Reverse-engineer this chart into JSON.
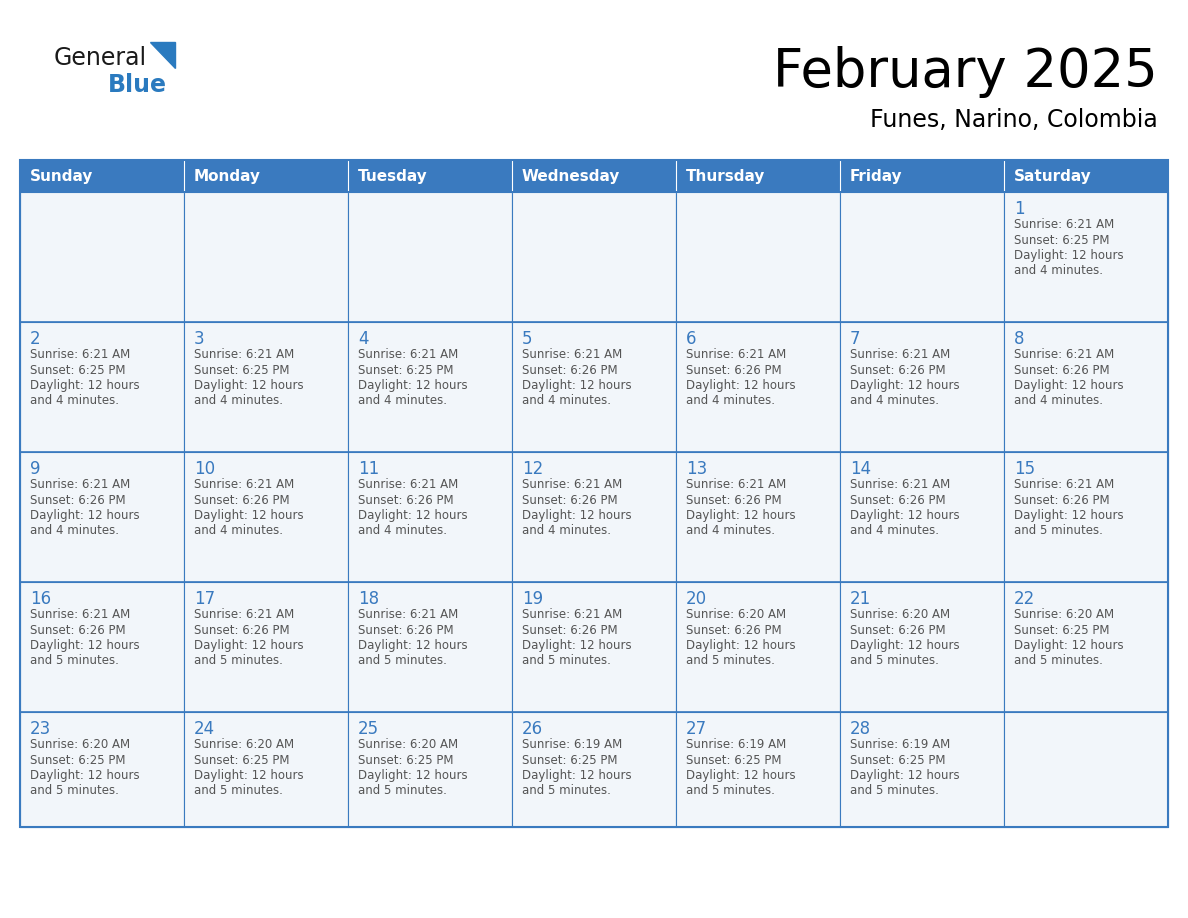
{
  "title": "February 2025",
  "subtitle": "Funes, Narino, Colombia",
  "header_bg": "#3a7abf",
  "header_text_color": "#ffffff",
  "cell_bg": "#f2f6fa",
  "border_color": "#3a7abf",
  "day_number_color": "#3a7abf",
  "text_color": "#555555",
  "days_of_week": [
    "Sunday",
    "Monday",
    "Tuesday",
    "Wednesday",
    "Thursday",
    "Friday",
    "Saturday"
  ],
  "logo_general_color": "#1a1a1a",
  "logo_blue_color": "#2a7abf",
  "calendar": [
    [
      null,
      null,
      null,
      null,
      null,
      null,
      {
        "day": "1",
        "sunrise": "6:21 AM",
        "sunset": "6:25 PM",
        "daylight_line1": "Daylight: 12 hours",
        "daylight_line2": "and 4 minutes."
      }
    ],
    [
      {
        "day": "2",
        "sunrise": "6:21 AM",
        "sunset": "6:25 PM",
        "daylight_line1": "Daylight: 12 hours",
        "daylight_line2": "and 4 minutes."
      },
      {
        "day": "3",
        "sunrise": "6:21 AM",
        "sunset": "6:25 PM",
        "daylight_line1": "Daylight: 12 hours",
        "daylight_line2": "and 4 minutes."
      },
      {
        "day": "4",
        "sunrise": "6:21 AM",
        "sunset": "6:25 PM",
        "daylight_line1": "Daylight: 12 hours",
        "daylight_line2": "and 4 minutes."
      },
      {
        "day": "5",
        "sunrise": "6:21 AM",
        "sunset": "6:26 PM",
        "daylight_line1": "Daylight: 12 hours",
        "daylight_line2": "and 4 minutes."
      },
      {
        "day": "6",
        "sunrise": "6:21 AM",
        "sunset": "6:26 PM",
        "daylight_line1": "Daylight: 12 hours",
        "daylight_line2": "and 4 minutes."
      },
      {
        "day": "7",
        "sunrise": "6:21 AM",
        "sunset": "6:26 PM",
        "daylight_line1": "Daylight: 12 hours",
        "daylight_line2": "and 4 minutes."
      },
      {
        "day": "8",
        "sunrise": "6:21 AM",
        "sunset": "6:26 PM",
        "daylight_line1": "Daylight: 12 hours",
        "daylight_line2": "and 4 minutes."
      }
    ],
    [
      {
        "day": "9",
        "sunrise": "6:21 AM",
        "sunset": "6:26 PM",
        "daylight_line1": "Daylight: 12 hours",
        "daylight_line2": "and 4 minutes."
      },
      {
        "day": "10",
        "sunrise": "6:21 AM",
        "sunset": "6:26 PM",
        "daylight_line1": "Daylight: 12 hours",
        "daylight_line2": "and 4 minutes."
      },
      {
        "day": "11",
        "sunrise": "6:21 AM",
        "sunset": "6:26 PM",
        "daylight_line1": "Daylight: 12 hours",
        "daylight_line2": "and 4 minutes."
      },
      {
        "day": "12",
        "sunrise": "6:21 AM",
        "sunset": "6:26 PM",
        "daylight_line1": "Daylight: 12 hours",
        "daylight_line2": "and 4 minutes."
      },
      {
        "day": "13",
        "sunrise": "6:21 AM",
        "sunset": "6:26 PM",
        "daylight_line1": "Daylight: 12 hours",
        "daylight_line2": "and 4 minutes."
      },
      {
        "day": "14",
        "sunrise": "6:21 AM",
        "sunset": "6:26 PM",
        "daylight_line1": "Daylight: 12 hours",
        "daylight_line2": "and 4 minutes."
      },
      {
        "day": "15",
        "sunrise": "6:21 AM",
        "sunset": "6:26 PM",
        "daylight_line1": "Daylight: 12 hours",
        "daylight_line2": "and 5 minutes."
      }
    ],
    [
      {
        "day": "16",
        "sunrise": "6:21 AM",
        "sunset": "6:26 PM",
        "daylight_line1": "Daylight: 12 hours",
        "daylight_line2": "and 5 minutes."
      },
      {
        "day": "17",
        "sunrise": "6:21 AM",
        "sunset": "6:26 PM",
        "daylight_line1": "Daylight: 12 hours",
        "daylight_line2": "and 5 minutes."
      },
      {
        "day": "18",
        "sunrise": "6:21 AM",
        "sunset": "6:26 PM",
        "daylight_line1": "Daylight: 12 hours",
        "daylight_line2": "and 5 minutes."
      },
      {
        "day": "19",
        "sunrise": "6:21 AM",
        "sunset": "6:26 PM",
        "daylight_line1": "Daylight: 12 hours",
        "daylight_line2": "and 5 minutes."
      },
      {
        "day": "20",
        "sunrise": "6:20 AM",
        "sunset": "6:26 PM",
        "daylight_line1": "Daylight: 12 hours",
        "daylight_line2": "and 5 minutes."
      },
      {
        "day": "21",
        "sunrise": "6:20 AM",
        "sunset": "6:26 PM",
        "daylight_line1": "Daylight: 12 hours",
        "daylight_line2": "and 5 minutes."
      },
      {
        "day": "22",
        "sunrise": "6:20 AM",
        "sunset": "6:25 PM",
        "daylight_line1": "Daylight: 12 hours",
        "daylight_line2": "and 5 minutes."
      }
    ],
    [
      {
        "day": "23",
        "sunrise": "6:20 AM",
        "sunset": "6:25 PM",
        "daylight_line1": "Daylight: 12 hours",
        "daylight_line2": "and 5 minutes."
      },
      {
        "day": "24",
        "sunrise": "6:20 AM",
        "sunset": "6:25 PM",
        "daylight_line1": "Daylight: 12 hours",
        "daylight_line2": "and 5 minutes."
      },
      {
        "day": "25",
        "sunrise": "6:20 AM",
        "sunset": "6:25 PM",
        "daylight_line1": "Daylight: 12 hours",
        "daylight_line2": "and 5 minutes."
      },
      {
        "day": "26",
        "sunrise": "6:19 AM",
        "sunset": "6:25 PM",
        "daylight_line1": "Daylight: 12 hours",
        "daylight_line2": "and 5 minutes."
      },
      {
        "day": "27",
        "sunrise": "6:19 AM",
        "sunset": "6:25 PM",
        "daylight_line1": "Daylight: 12 hours",
        "daylight_line2": "and 5 minutes."
      },
      {
        "day": "28",
        "sunrise": "6:19 AM",
        "sunset": "6:25 PM",
        "daylight_line1": "Daylight: 12 hours",
        "daylight_line2": "and 5 minutes."
      },
      null
    ]
  ]
}
